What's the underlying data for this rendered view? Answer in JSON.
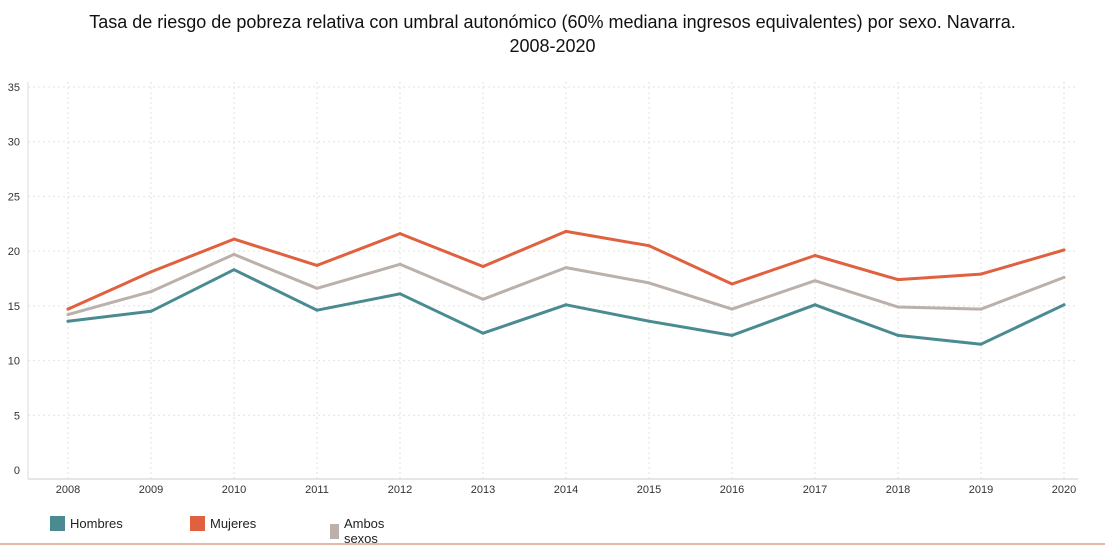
{
  "chart_data": {
    "type": "line",
    "title": "Tasa de riesgo de pobreza relativa con umbral autonómico (60% mediana ingresos equivalentes) por sexo. Navarra.",
    "title_line2": "2008-2020",
    "xlabel": "",
    "ylabel": "",
    "x": [
      "2008",
      "2009",
      "2010",
      "2011",
      "2012",
      "2013",
      "2014",
      "2015",
      "2016",
      "2017",
      "2018",
      "2019",
      "2020"
    ],
    "ylim": [
      0,
      35
    ],
    "yticks": [
      "0",
      "5",
      "10",
      "15",
      "20",
      "25",
      "30",
      "35"
    ],
    "grid": true,
    "legend_position": "bottom-left",
    "series": [
      {
        "name": "Hombres",
        "color": "#4a8b91",
        "values": [
          13.6,
          14.5,
          18.3,
          14.6,
          16.1,
          12.5,
          15.1,
          13.6,
          12.3,
          15.1,
          12.3,
          11.5,
          15.1
        ]
      },
      {
        "name": "Mujeres",
        "color": "#e0613f",
        "values": [
          14.7,
          18.1,
          21.1,
          18.7,
          21.6,
          18.6,
          21.8,
          20.5,
          17.0,
          19.6,
          17.4,
          17.9,
          20.1
        ]
      },
      {
        "name": "Ambos sexos",
        "color": "#bbb1aa",
        "values": [
          14.2,
          16.3,
          19.7,
          16.6,
          18.8,
          15.6,
          18.5,
          17.1,
          14.7,
          17.3,
          14.9,
          14.7,
          17.6
        ]
      }
    ]
  }
}
